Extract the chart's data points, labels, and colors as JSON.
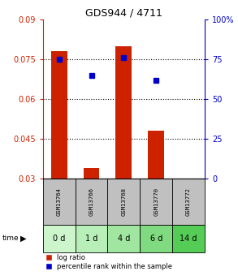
{
  "title": "GDS944 / 4711",
  "samples": [
    "GSM13764",
    "GSM13766",
    "GSM13768",
    "GSM13770",
    "GSM13772"
  ],
  "time_labels": [
    "0 d",
    "1 d",
    "4 d",
    "6 d",
    "14 d"
  ],
  "log_ratios": [
    0.078,
    0.034,
    0.08,
    0.048,
    0.03
  ],
  "percentile_ranks": [
    75,
    65,
    76,
    62,
    null
  ],
  "ylim_left": [
    0.03,
    0.09
  ],
  "ylim_right": [
    0,
    100
  ],
  "yticks_left": [
    0.03,
    0.045,
    0.06,
    0.075,
    0.09
  ],
  "yticks_right": [
    0,
    25,
    50,
    75,
    100
  ],
  "bar_color": "#cc2200",
  "dot_color": "#0000cc",
  "bar_width": 0.5,
  "background_color": "#ffffff",
  "plot_bg_color": "#ffffff",
  "sample_bg_color": "#c0c0c0",
  "time_bg_colors": [
    "#ccf5cc",
    "#b8eeb8",
    "#a0e6a0",
    "#80da80",
    "#55cc55"
  ],
  "legend_log_ratio_color": "#cc2200",
  "legend_percentile_color": "#0000cc",
  "grid_dotted_ticks": [
    0.045,
    0.06,
    0.075
  ]
}
